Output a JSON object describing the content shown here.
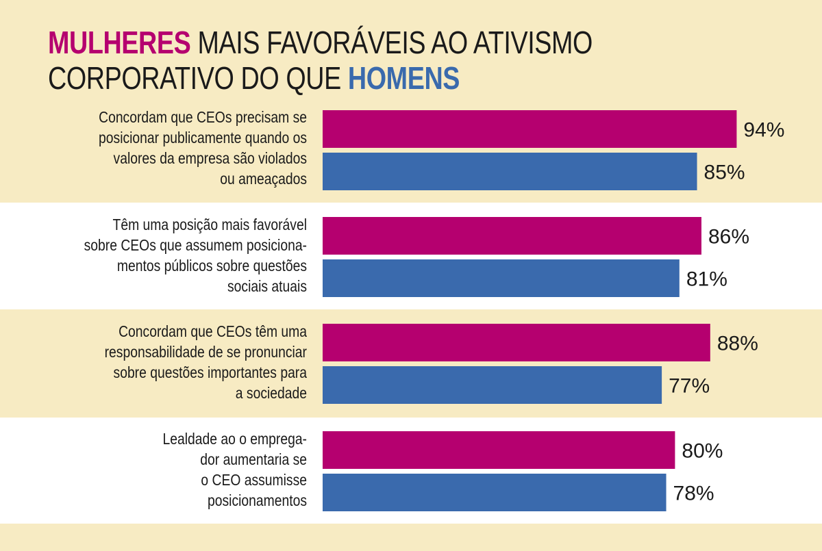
{
  "chart_data": {
    "type": "bar",
    "orientation": "horizontal",
    "title": {
      "part1": "MULHERES",
      "part2": " MAIS FAVORÁVEIS AO ATIVISMO",
      "part3": "CORPORATIVO DO QUE ",
      "part4": "HOMENS"
    },
    "categories": [
      [
        "Concordam que CEOs precisam se",
        "posicionar publicamente quando os",
        "valores da empresa são violados",
        "ou ameaçados"
      ],
      [
        "Têm uma posição mais favorável",
        "sobre CEOs que assumem posiciona-",
        "mentos públicos sobre questões",
        "sociais atuais"
      ],
      [
        "Concordam que CEOs têm uma",
        "responsabilidade de se pronunciar",
        "sobre questões importantes para",
        "a sociedade"
      ],
      [
        "Lealdade ao o emprega-",
        "dor aumentaria se",
        "o CEO assumisse",
        "posicionamentos"
      ]
    ],
    "series": [
      {
        "name": "MULHERES",
        "color": "#b5006f",
        "values": [
          94,
          86,
          88,
          80
        ],
        "labels": [
          "94%",
          "86%",
          "88%",
          "80%"
        ]
      },
      {
        "name": "HOMENS",
        "color": "#3a6aad",
        "values": [
          85,
          81,
          77,
          78
        ],
        "labels": [
          "85%",
          "81%",
          "77%",
          "78%"
        ]
      }
    ],
    "unit": "%",
    "xlim": [
      0,
      100
    ],
    "grid": false,
    "colors": {
      "band_alt": "#f7ebc3",
      "band": "#ffffff"
    }
  }
}
